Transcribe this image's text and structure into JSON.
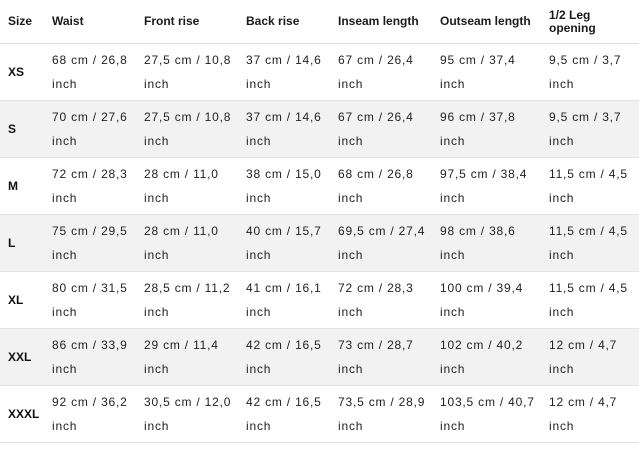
{
  "headers": {
    "size": "Size",
    "waist": "Waist",
    "front_rise": "Front rise",
    "back_rise": "Back rise",
    "inseam": "Inseam length",
    "outseam": "Outseam length",
    "leg_opening": "1/2 Leg opening"
  },
  "rows": [
    {
      "size": "XS",
      "waist": "68 cm / 26,8 inch",
      "front_rise": "27,5 cm / 10,8 inch",
      "back_rise": "37 cm / 14,6 inch",
      "inseam": "67 cm / 26,4 inch",
      "outseam": "95 cm / 37,4 inch",
      "leg_opening": "9,5 cm / 3,7 inch"
    },
    {
      "size": "S",
      "waist": "70 cm / 27,6 inch",
      "front_rise": "27,5 cm / 10,8 inch",
      "back_rise": "37 cm / 14,6 inch",
      "inseam": "67 cm / 26,4 inch",
      "outseam": "96 cm / 37,8 inch",
      "leg_opening": "9,5 cm / 3,7 inch"
    },
    {
      "size": "M",
      "waist": "72 cm / 28,3 inch",
      "front_rise": "28 cm / 11,0 inch",
      "back_rise": "38 cm / 15,0 inch",
      "inseam": "68 cm / 26,8 inch",
      "outseam": "97,5 cm / 38,4 inch",
      "leg_opening": "11,5 cm / 4,5 inch"
    },
    {
      "size": "L",
      "waist": "75 cm / 29,5 inch",
      "front_rise": "28 cm / 11,0 inch",
      "back_rise": "40 cm / 15,7 inch",
      "inseam": "69,5 cm / 27,4 inch",
      "outseam": "98 cm / 38,6 inch",
      "leg_opening": "11,5 cm / 4,5 inch"
    },
    {
      "size": "XL",
      "waist": "80 cm / 31,5 inch",
      "front_rise": "28,5 cm / 11,2 inch",
      "back_rise": "41 cm / 16,1 inch",
      "inseam": "72 cm / 28,3 inch",
      "outseam": "100 cm / 39,4 inch",
      "leg_opening": "11,5 cm / 4,5 inch"
    },
    {
      "size": "XXL",
      "waist": "86 cm / 33,9 inch",
      "front_rise": "29 cm / 11,4 inch",
      "back_rise": "42 cm / 16,5 inch",
      "inseam": "73 cm / 28,7 inch",
      "outseam": "102 cm / 40,2 inch",
      "leg_opening": "12 cm / 4,7 inch"
    },
    {
      "size": "XXXL",
      "waist": "92 cm / 36,2 inch",
      "front_rise": "30,5 cm / 12,0 inch",
      "back_rise": "42 cm / 16,5 inch",
      "inseam": "73,5 cm / 28,9 inch",
      "outseam": "103,5 cm / 40,7 inch",
      "leg_opening": "12 cm / 4,7 inch"
    }
  ]
}
